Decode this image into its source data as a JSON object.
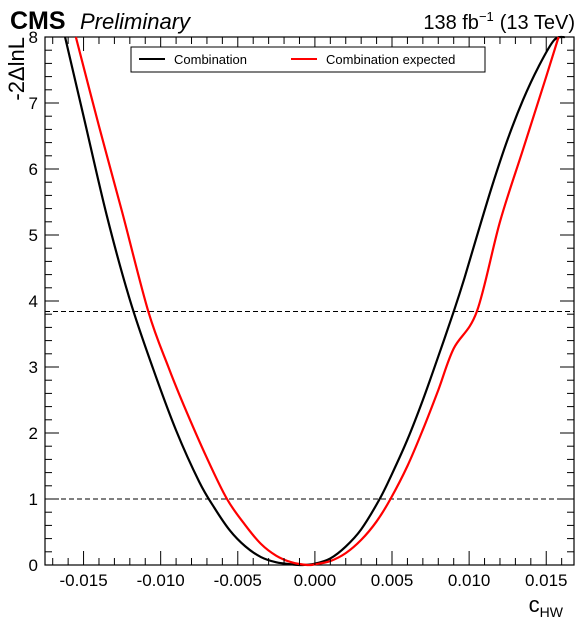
{
  "header": {
    "experiment": "CMS",
    "status": "Preliminary",
    "lumi": "138 fb",
    "lumi_exp": "−1",
    "energy": "(13 TeV)"
  },
  "chart_data": {
    "type": "line",
    "xlabel": "c",
    "xlabel_sub": "HW",
    "ylabel": "-2ΔlnL",
    "xlim": [
      -0.0175,
      0.0168
    ],
    "ylim": [
      0,
      8
    ],
    "xticks": [
      -0.015,
      -0.01,
      -0.005,
      0.0,
      0.005,
      0.01,
      0.015
    ],
    "xtick_labels": [
      "-0.015",
      "-0.010",
      "-0.005",
      "0.000",
      "0.005",
      "0.010",
      "0.015"
    ],
    "yticks": [
      0,
      1,
      2,
      3,
      4,
      5,
      6,
      7,
      8
    ],
    "ytick_labels": [
      "0",
      "1",
      "2",
      "3",
      "4",
      "5",
      "6",
      "7",
      "8"
    ],
    "reference_lines": [
      1.0,
      3.84
    ],
    "legend_position": "top-center",
    "series": [
      {
        "name": "Combination",
        "color": "#000000",
        "x": [
          -0.0162,
          -0.015,
          -0.0135,
          -0.012,
          -0.0105,
          -0.009,
          -0.0075,
          -0.0065,
          -0.0055,
          -0.0045,
          -0.0035,
          -0.0025,
          -0.0015,
          -0.0008,
          0.0,
          0.001,
          0.002,
          0.003,
          0.0042,
          0.005,
          0.006,
          0.007,
          0.008,
          0.009,
          0.0097,
          0.0105,
          0.0115,
          0.0125,
          0.0135,
          0.0145,
          0.0155,
          0.0162
        ],
        "y": [
          8.0,
          6.8,
          5.3,
          4.02,
          2.98,
          2.04,
          1.26,
          0.86,
          0.52,
          0.28,
          0.12,
          0.04,
          0.01,
          0.0,
          0.02,
          0.1,
          0.28,
          0.54,
          1.0,
          1.38,
          1.9,
          2.5,
          3.16,
          3.84,
          4.35,
          4.98,
          5.75,
          6.45,
          7.05,
          7.55,
          7.95,
          8.0
        ]
      },
      {
        "name": "Combination expected",
        "color": "#ff0000",
        "x": [
          -0.0155,
          -0.014,
          -0.0125,
          -0.0108,
          -0.0095,
          -0.0085,
          -0.007,
          -0.0057,
          -0.0045,
          -0.0035,
          -0.0025,
          -0.0015,
          -0.0005,
          0.0,
          0.001,
          0.002,
          0.003,
          0.004,
          0.0049,
          0.006,
          0.007,
          0.008,
          0.009,
          0.0105,
          0.012,
          0.0135,
          0.015,
          0.0158
        ],
        "y": [
          8.0,
          6.65,
          5.35,
          3.84,
          3.0,
          2.42,
          1.62,
          1.0,
          0.6,
          0.32,
          0.14,
          0.04,
          0.0,
          0.01,
          0.06,
          0.18,
          0.38,
          0.66,
          1.0,
          1.5,
          2.05,
          2.65,
          3.28,
          3.84,
          5.2,
          6.3,
          7.4,
          8.0
        ]
      }
    ]
  }
}
